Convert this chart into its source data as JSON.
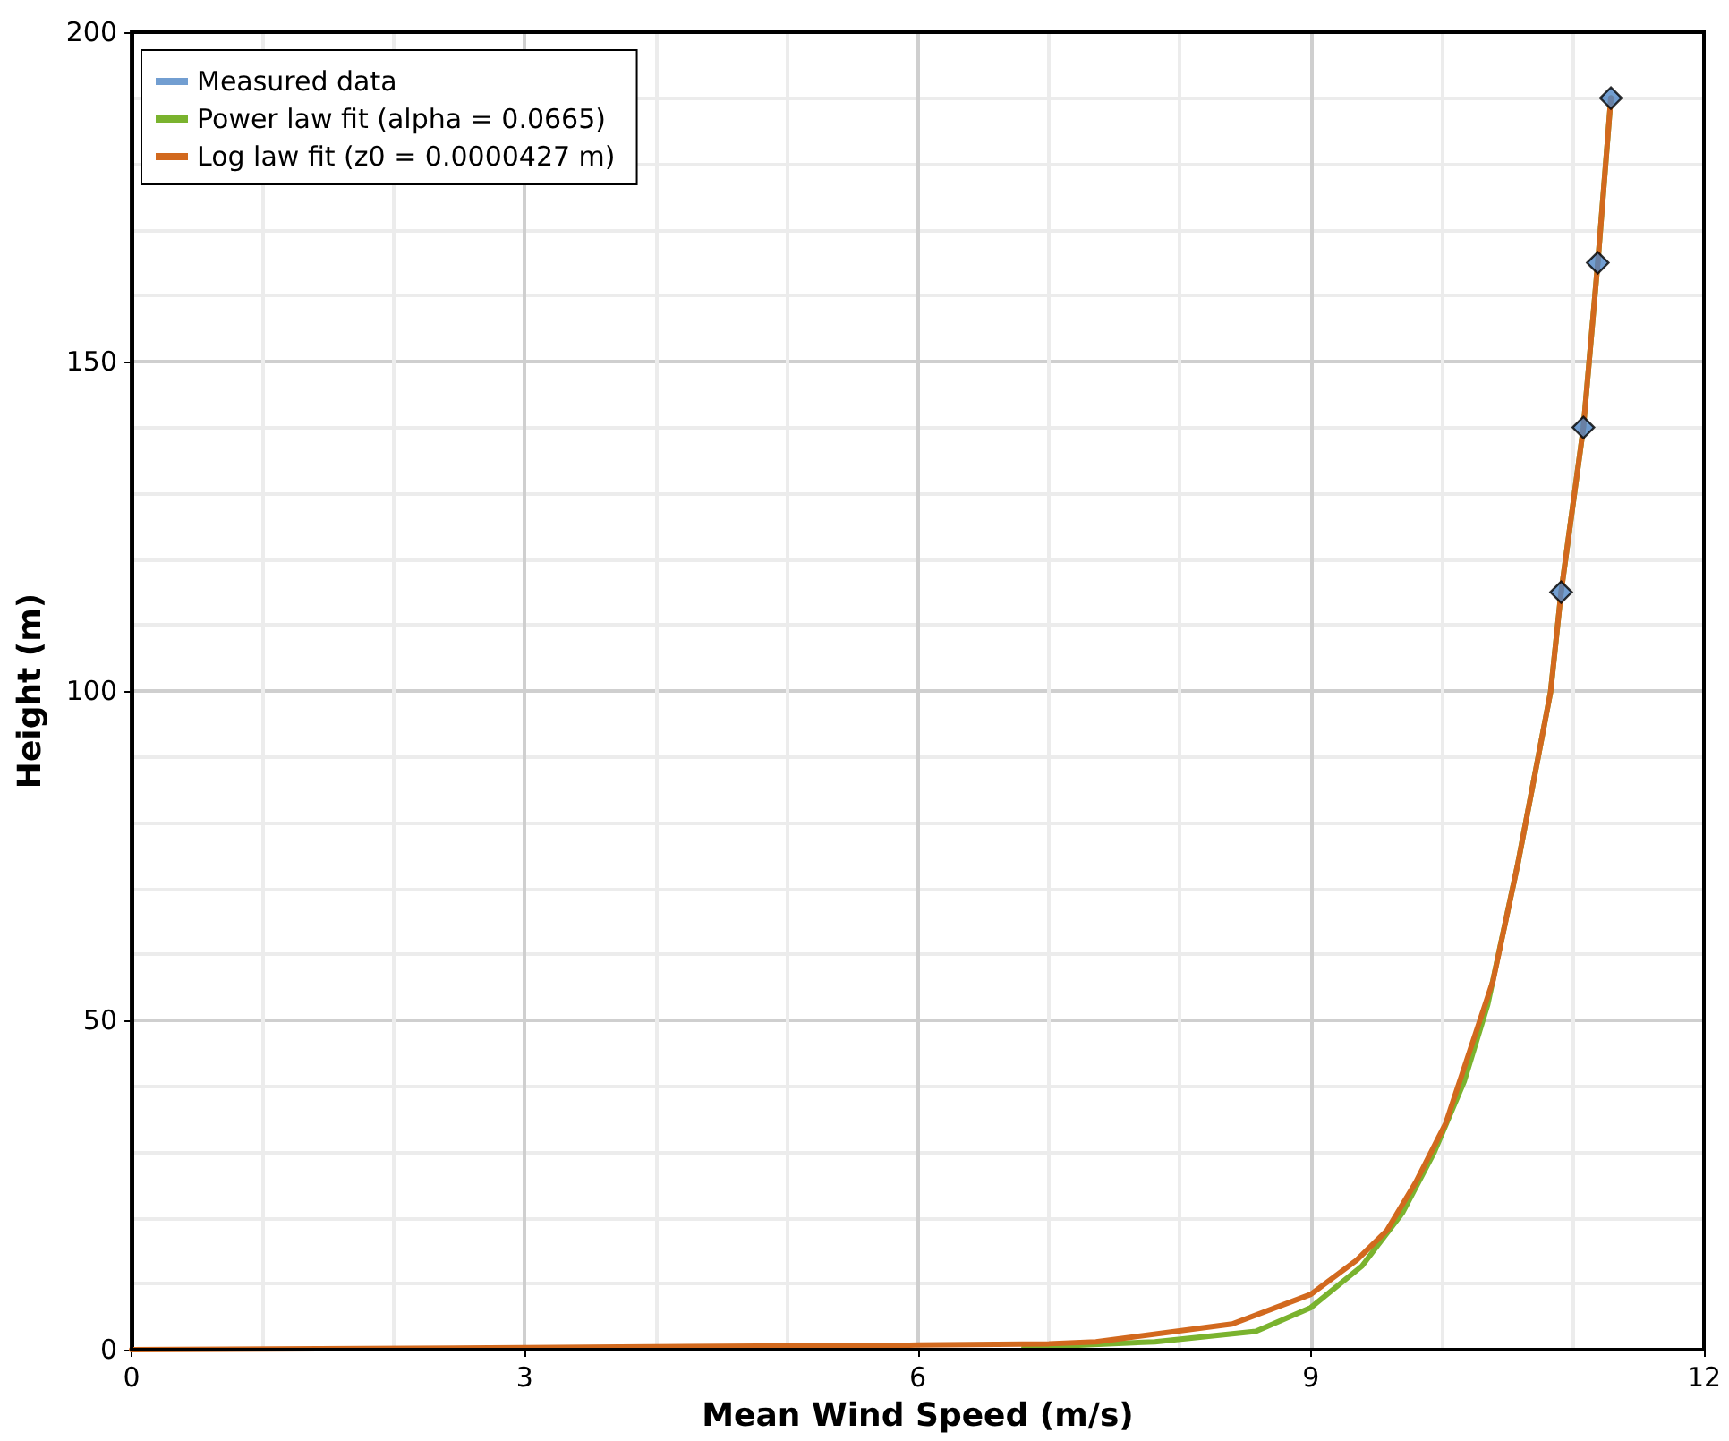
{
  "chart_data": {
    "type": "line",
    "xlabel": "Mean Wind Speed (m/s)",
    "ylabel": "Height (m)",
    "xlim": [
      0,
      12
    ],
    "ylim": [
      0,
      200
    ],
    "xticks": [
      0,
      {
        "value": 1,
        "label": null
      },
      {
        "value": 2,
        "label": null
      },
      3,
      {
        "value": 4,
        "label": null
      },
      {
        "value": 5,
        "label": null
      },
      6,
      {
        "value": 7,
        "label": null
      },
      {
        "value": 8,
        "label": null
      },
      9,
      {
        "value": 10,
        "label": null
      },
      {
        "value": 11,
        "label": null
      },
      12
    ],
    "yticks": [
      0,
      {
        "value": 10,
        "label": null
      },
      {
        "value": 20,
        "label": null
      },
      {
        "value": 30,
        "label": null
      },
      {
        "value": 40,
        "label": null
      },
      50,
      {
        "value": 60,
        "label": null
      },
      {
        "value": 70,
        "label": null
      },
      {
        "value": 80,
        "label": null
      },
      {
        "value": 90,
        "label": null
      },
      100,
      {
        "value": 110,
        "label": null
      },
      {
        "value": 120,
        "label": null
      },
      {
        "value": 130,
        "label": null
      },
      {
        "value": 140,
        "label": null
      },
      150,
      {
        "value": 160,
        "label": null
      },
      {
        "value": 170,
        "label": null
      },
      {
        "value": 180,
        "label": null
      },
      {
        "value": 190,
        "label": null
      },
      200
    ],
    "grid": true,
    "legend": "top left",
    "line_style": "solid",
    "series": [
      {
        "name": "Measured data",
        "type": "scatter",
        "marker": "diamond",
        "color": "#4f86c6",
        "x": [
          10.91,
          11.08,
          11.19,
          11.29
        ],
        "values": [
          115,
          140,
          165,
          190
        ]
      },
      {
        "name": "Power law fit (alpha = 0.0665)",
        "type": "line",
        "marker": "none",
        "color": "#7ab32e",
        "x": [
          6.81,
          7.81,
          8.58,
          9.0,
          9.39,
          9.7,
          9.94,
          10.17,
          10.35,
          10.58,
          10.83,
          10.91,
          11.08,
          11.19,
          11.29
        ],
        "values": [
          0.3,
          1.2,
          2.8,
          6.4,
          12.7,
          20.8,
          29.9,
          40.7,
          52.4,
          73.8,
          99.9,
          115,
          140,
          165,
          190
        ]
      },
      {
        "name": "Log law fit (z0 = 0.0000427 m)",
        "type": "line",
        "marker": "none",
        "color": "#d2691e",
        "x": [
          0,
          3,
          6,
          7,
          7.36,
          8.4,
          9.0,
          9.35,
          9.58,
          9.8,
          10.03,
          10.21,
          10.39,
          10.58,
          10.83,
          10.91,
          11.08,
          11.19,
          11.29
        ],
        "values": [
          0,
          0.3,
          0.7,
          0.9,
          1.2,
          3.9,
          8.4,
          13.6,
          18.1,
          25.4,
          34.4,
          45.2,
          56,
          73.8,
          99.9,
          115,
          140,
          165,
          190
        ]
      }
    ]
  }
}
